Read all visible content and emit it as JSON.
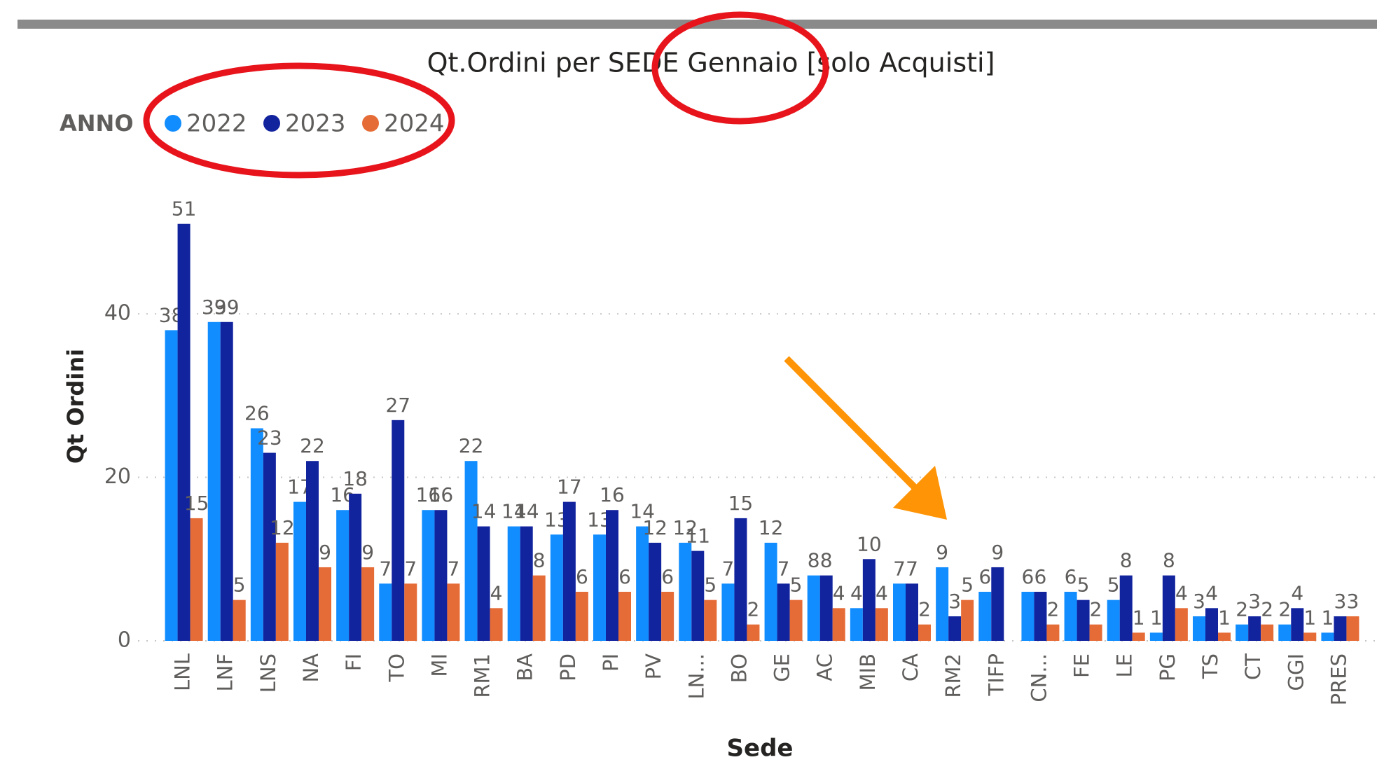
{
  "chart_data": {
    "type": "bar",
    "title": "Qt.Ordini per SEDE Gennaio [solo Acquisti]",
    "legend_title": "ANNO",
    "x_label": "Sede",
    "y_label": "Qt Ordini",
    "categories": [
      "LNL",
      "LNF",
      "LNS",
      "NA",
      "FI",
      "TO",
      "MI",
      "RM1",
      "BA",
      "PD",
      "PI",
      "PV",
      "LN...",
      "BO",
      "GE",
      "AC",
      "MIB",
      "CA",
      "RM2",
      "TIFP",
      "CN...",
      "FE",
      "LE",
      "PG",
      "TS",
      "CT",
      "GGI",
      "PRES"
    ],
    "series": [
      {
        "name": "2022",
        "color": "#118dff",
        "values": [
          38,
          39,
          26,
          17,
          16,
          7,
          16,
          22,
          14,
          13,
          13,
          14,
          12,
          7,
          12,
          8,
          4,
          7,
          9,
          6,
          6,
          6,
          5,
          1,
          3,
          2,
          2,
          1
        ]
      },
      {
        "name": "2023",
        "color": "#12239e",
        "values": [
          51,
          39,
          23,
          22,
          18,
          27,
          16,
          14,
          14,
          17,
          16,
          12,
          11,
          15,
          7,
          8,
          10,
          7,
          3,
          9,
          6,
          5,
          8,
          8,
          4,
          3,
          4,
          3
        ]
      },
      {
        "name": "2024",
        "color": "#e66c37",
        "values": [
          15,
          5,
          12,
          9,
          9,
          7,
          7,
          4,
          8,
          6,
          6,
          6,
          5,
          2,
          5,
          4,
          4,
          2,
          5,
          null,
          2,
          2,
          1,
          4,
          1,
          2,
          1,
          3
        ]
      }
    ],
    "ylim": [
      0,
      55
    ],
    "yticks": [
      0,
      20,
      40
    ],
    "grid": true,
    "legend": "top-left"
  }
}
